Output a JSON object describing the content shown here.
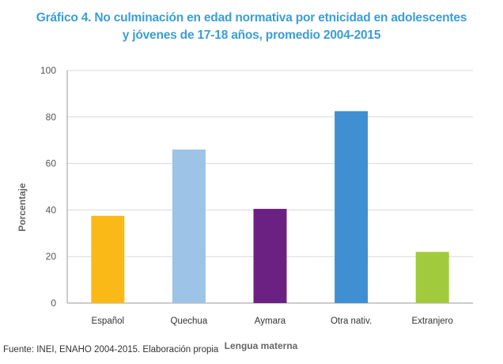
{
  "chart_data": {
    "type": "bar",
    "title_line1": "Gráfico 4. No culminación en edad normativa por etnicidad en adolescentes",
    "title_line2": "y jóvenes de 17-18 años, promedio 2004-2015",
    "xlabel": "Lengua materna",
    "ylabel": "Porcentaje",
    "ylim": [
      0,
      100
    ],
    "yticks": [
      0,
      20,
      40,
      60,
      80,
      100
    ],
    "grid": true,
    "categories": [
      "Español",
      "Quechua",
      "Aymara",
      "Otra nativ.",
      "Extranjero"
    ],
    "values": [
      37.5,
      66,
      40.5,
      82.5,
      22
    ],
    "colors": [
      "#fbb917",
      "#9dc3e6",
      "#6b2182",
      "#3f8fd2",
      "#a1cb3c"
    ]
  },
  "source": "Fuente: INEI, ENAHO 2004-2015. Elaboración propia"
}
